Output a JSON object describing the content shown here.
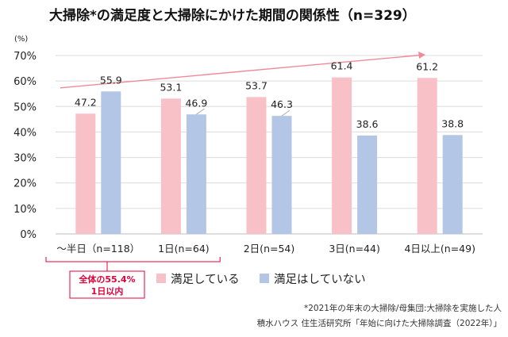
{
  "chart_data": {
    "type": "bar",
    "title": "大掃除*の満足度と大掃除にかけた期間の関係性（n=329）",
    "yunit": "(%)",
    "ylim": [
      0,
      70
    ],
    "yticks": [
      "0%",
      "10%",
      "20%",
      "30%",
      "40%",
      "50%",
      "60%",
      "70%"
    ],
    "categories": [
      "～半日（n=118）",
      "1日(n=64)",
      "2日(n=54)",
      "3日(n=44)",
      "4日以上(n=49)"
    ],
    "series": [
      {
        "name": "満足している",
        "color": "#f7c1c7",
        "values": [
          47.2,
          53.1,
          53.7,
          61.4,
          61.2
        ]
      },
      {
        "name": "満足はしていない",
        "color": "#b3c6e6",
        "values": [
          55.9,
          46.9,
          46.3,
          38.6,
          38.8
        ]
      }
    ],
    "data_labels": [
      [
        "47.2",
        "53.1",
        "53.7",
        "61.4",
        "61.2"
      ],
      [
        "55.9",
        "46.9",
        "46.3",
        "38.6",
        "38.8"
      ]
    ],
    "grid": true,
    "legend_position": "bottom",
    "trend_arrow_color": "#f08a96",
    "annotation": {
      "lines": [
        "全体の55.4%",
        "1日以内"
      ],
      "color": "#e0003a"
    },
    "footnotes": [
      "*2021年の年末の大掃除/母集団:大掃除を実施した人",
      "積水ハウス 住生活研究所「年始に向けた大掃除調査（2022年）」"
    ]
  }
}
